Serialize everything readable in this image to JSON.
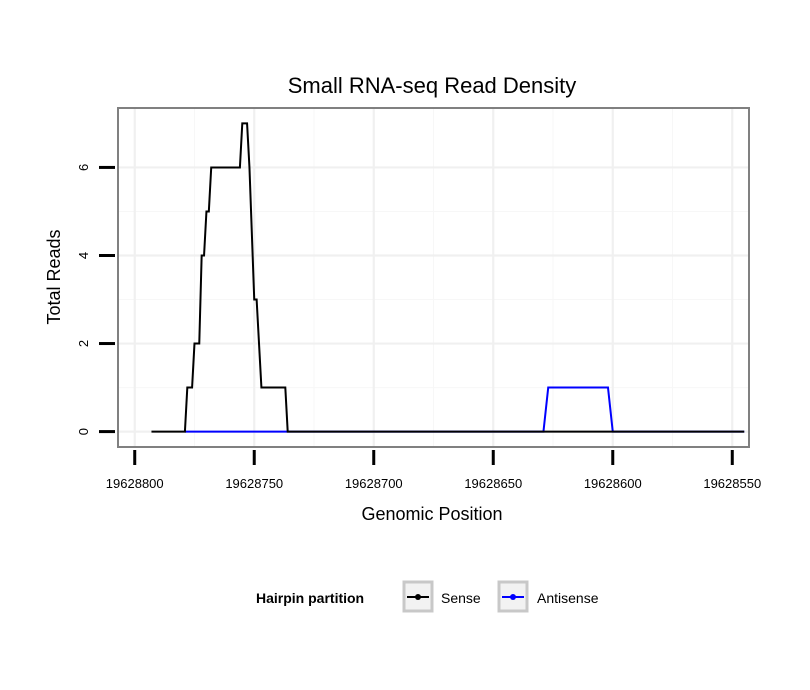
{
  "chart_data": {
    "type": "line",
    "title": "Small RNA-seq Read Density",
    "xlabel": "Genomic Position",
    "ylabel": "Total Reads",
    "x_reversed": true,
    "xlim": [
      19628807,
      19628543
    ],
    "ylim": [
      -0.35,
      7.35
    ],
    "x_ticks": [
      19628800,
      19628750,
      19628700,
      19628650,
      19628600,
      19628550
    ],
    "x_tick_labels": [
      "19628800",
      "19628750",
      "19628700",
      "19628650",
      "19628600",
      "19628550"
    ],
    "y_ticks": [
      0,
      2,
      4,
      6
    ],
    "y_tick_labels": [
      "0",
      "2",
      "4",
      "6"
    ],
    "grid": true,
    "legend": {
      "title": "Hairpin partition",
      "position": "bottom",
      "entries": [
        "Sense",
        "Antisense"
      ]
    },
    "series": [
      {
        "name": "Sense",
        "color": "#000000",
        "x": [
          19628793,
          19628779,
          19628778,
          19628776,
          19628775,
          19628773,
          19628772,
          19628771,
          19628770,
          19628769,
          19628768,
          19628756,
          19628755,
          19628753,
          19628752,
          19628750,
          19628749,
          19628747,
          19628746,
          19628737,
          19628736,
          19628545
        ],
        "y": [
          0,
          0,
          1,
          1,
          2,
          2,
          4,
          4,
          5,
          5,
          6,
          6,
          7,
          7,
          6,
          3,
          3,
          1,
          1,
          1,
          0,
          0
        ]
      },
      {
        "name": "Antisense",
        "color": "#0000ff",
        "x": [
          19628779,
          19628736,
          19628629,
          19628627,
          19628602,
          19628600,
          19628545
        ],
        "y": [
          0,
          0,
          0,
          1,
          1,
          0,
          0
        ]
      }
    ]
  }
}
